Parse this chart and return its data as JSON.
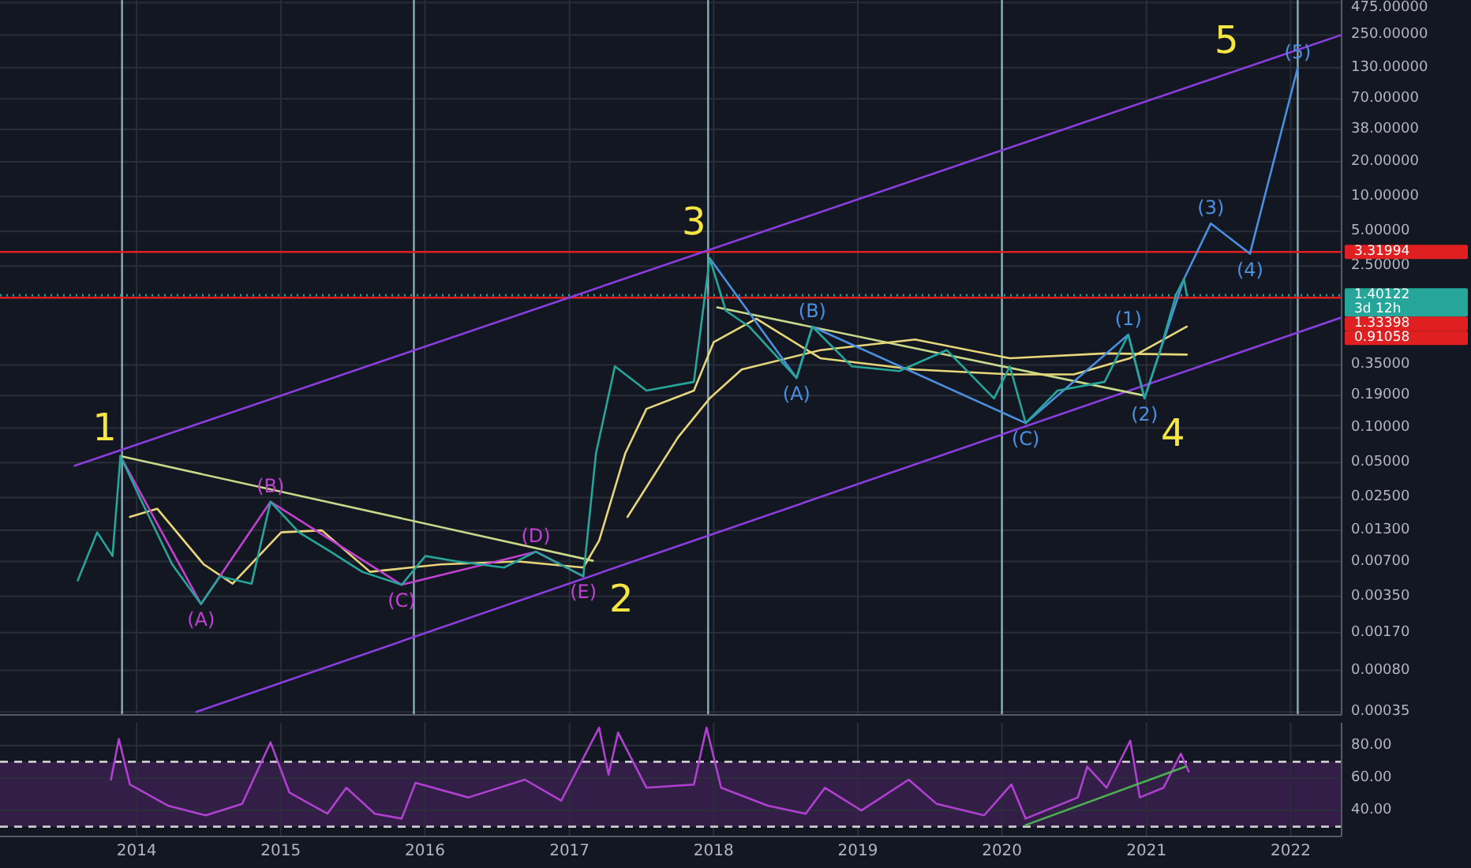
{
  "chart_data": [
    {
      "type": "line",
      "log": true,
      "grid": true,
      "tick_labels": "y",
      "xlim": [
        "2013-01-20",
        "2022-05-10"
      ],
      "xticks": [
        "2014",
        "2015",
        "2016",
        "2017",
        "2018",
        "2019",
        "2020",
        "2021",
        "2022"
      ],
      "ylim": [
        0.00033,
        500
      ],
      "yticks": [
        {
          "value": 0.00035,
          "label": "0.00035"
        },
        {
          "value": 0.0008,
          "label": "0.00080"
        },
        {
          "value": 0.0017,
          "label": "0.00170"
        },
        {
          "value": 0.0035,
          "label": "0.00350"
        },
        {
          "value": 0.007,
          "label": "0.00700"
        },
        {
          "value": 0.013,
          "label": "0.01300"
        },
        {
          "value": 0.025,
          "label": "0.02500"
        },
        {
          "value": 0.05,
          "label": "0.05000"
        },
        {
          "value": 0.1,
          "label": "0.10000"
        },
        {
          "value": 0.19,
          "label": "0.19000"
        },
        {
          "value": 0.35,
          "label": "0.35000"
        },
        {
          "value": 2.5,
          "label": "2.50000"
        },
        {
          "value": 5,
          "label": "5.00000"
        },
        {
          "value": 10,
          "label": "10.00000"
        },
        {
          "value": 20,
          "label": "20.00000"
        },
        {
          "value": 38,
          "label": "38.00000"
        },
        {
          "value": 70,
          "label": "70.00000"
        },
        {
          "value": 130,
          "label": "130.00000"
        },
        {
          "value": 250,
          "label": "250.00000"
        },
        {
          "value": 475,
          "label": "475.00000"
        }
      ],
      "series": [
        {
          "color": "#8a3ee0",
          "x": [
            "2013-07-28",
            "2022-05-10"
          ],
          "values": [
            0.047,
            250
          ]
        },
        {
          "color": "#8a3ee0",
          "x": [
            "2014-06-01",
            "2022-05-10"
          ],
          "values": [
            0.00035,
            0.9
          ]
        },
        {
          "color": "#c8d98a",
          "x": [
            "2013-11-21",
            "2017-03-01"
          ],
          "values": [
            0.057,
            0.0071
          ]
        },
        {
          "color": "#c8d98a",
          "x": [
            "2018-01-10",
            "2020-12-27"
          ],
          "values": [
            1.1,
            0.19
          ]
        },
        {
          "color": "#e8d77a",
          "x": [
            "2013-12-15",
            "2014-02-22",
            "2014-06-20",
            "2014-09-01",
            "2015-01-02",
            "2015-04-15",
            "2015-08-15",
            "2016-02-10",
            "2016-08-25",
            "2017-02-05",
            "2017-03-17",
            "2017-05-22",
            "2017-07-15",
            "2017-11-12",
            "2018-01-01",
            "2018-04-19",
            "2018-09-28",
            "2019-05-26",
            "2020-01-21",
            "2020-07-01",
            "2020-11-20",
            "2021-04-13"
          ],
          "values": [
            0.017,
            0.02,
            0.0066,
            0.0045,
            0.0125,
            0.013,
            0.0057,
            0.0066,
            0.007,
            0.0062,
            0.0106,
            0.06,
            0.146,
            0.21,
            0.55,
            0.88,
            0.4,
            0.32,
            0.29,
            0.29,
            0.4,
            0.75
          ]
        },
        {
          "color": "#e8d77a",
          "x": [
            "2017-05-28",
            "2017-10-03",
            "2017-12-22",
            "2018-03-13",
            "2018-09-28",
            "2019-05-26",
            "2020-01-21",
            "2020-09-17",
            "2021-04-13"
          ],
          "values": [
            0.017,
            0.083,
            0.18,
            0.32,
            0.47,
            0.58,
            0.4,
            0.44,
            0.43
          ]
        },
        {
          "color": "#c040d0",
          "x": [
            "2013-11-21",
            "2014-06-13",
            "2014-12-06",
            "2015-11-03",
            "2016-10-08",
            "2017-02-05"
          ],
          "values": [
            0.057,
            0.003,
            0.023,
            0.0044,
            0.0085,
            0.0052
          ]
        },
        {
          "color": "#4a8fe0",
          "x": [
            "2017-12-22",
            "2018-07-30",
            "2018-09-08",
            "2020-03-01"
          ],
          "values": [
            2.93,
            0.27,
            0.75,
            0.11
          ]
        },
        {
          "color": "#4a8fe0",
          "x": [
            "2020-03-01",
            "2020-11-16",
            "2020-12-27",
            "2021-04-06",
            "2021-06-13",
            "2021-09-20",
            "2022-01-19"
          ],
          "values": [
            0.11,
            0.64,
            0.18,
            1.94,
            5.85,
            3.2,
            130
          ]
        },
        {
          "color": "#26a69a",
          "x": [
            "2013-08-05",
            "2013-09-23",
            "2013-11-01",
            "2013-11-21",
            "2014-01-13",
            "2014-04-01",
            "2014-06-13",
            "2014-07-31",
            "2014-10-19",
            "2014-12-06",
            "2015-02-16",
            "2015-05-07",
            "2015-07-26",
            "2015-11-03",
            "2016-01-02",
            "2016-03-23",
            "2016-07-19",
            "2016-10-08",
            "2017-02-05",
            "2017-03-09",
            "2017-04-26",
            "2017-07-15",
            "2017-11-12",
            "2017-12-22",
            "2018-02-01",
            "2018-04-01",
            "2018-07-30",
            "2018-09-08",
            "2018-12-17",
            "2019-04-16",
            "2019-08-14",
            "2019-12-12",
            "2020-01-21",
            "2020-03-01",
            "2020-05-21",
            "2020-09-17",
            "2020-11-16",
            "2020-12-27",
            "2021-02-05",
            "2021-03-17",
            "2021-04-06",
            "2021-04-13"
          ],
          "values": [
            0.0048,
            0.0125,
            0.0078,
            0.057,
            0.0234,
            0.0066,
            0.003,
            0.0052,
            0.0045,
            0.023,
            0.0125,
            0.0085,
            0.0057,
            0.0044,
            0.0078,
            0.007,
            0.0062,
            0.0085,
            0.0052,
            0.06,
            0.34,
            0.21,
            0.25,
            2.93,
            1.03,
            0.75,
            0.27,
            0.75,
            0.34,
            0.31,
            0.47,
            0.18,
            0.34,
            0.11,
            0.21,
            0.25,
            0.64,
            0.18,
            0.47,
            1.42,
            1.94,
            1.4
          ]
        }
      ],
      "ref_lines": [
        {
          "axis": "x",
          "value": "2013-11-25",
          "color": "#a8d0e0"
        },
        {
          "axis": "x",
          "value": "2015-12-04",
          "color": "#a8d0e0"
        },
        {
          "axis": "x",
          "value": "2017-12-18",
          "color": "#a8d0e0"
        },
        {
          "axis": "x",
          "value": "2020-01-01",
          "color": "#a8d0e0"
        },
        {
          "axis": "x",
          "value": "2022-01-19",
          "color": "#a8d0e0"
        },
        {
          "axis": "y",
          "value": 3.31994,
          "label": "3.31994",
          "color": "#e02020",
          "line_style": "solid"
        },
        {
          "axis": "y",
          "value": 1.40122,
          "label": "1.40122",
          "color": "#26a69a",
          "line_style": "dotted"
        },
        {
          "axis": "y",
          "value": 1.33398,
          "label": "1.33398",
          "color": "#e02020",
          "line_style": "solid"
        }
      ],
      "annotations": [
        "3d 12h",
        "0.91058",
        {
          "text": "1",
          "x": "2013-11-21",
          "y": 0.057
        },
        {
          "text": "2",
          "x": "2017-03-01",
          "y": 0.0071
        },
        {
          "text": "3",
          "x": "2017-12-22",
          "y": 3.45
        },
        {
          "text": "4",
          "x": "2020-12-27",
          "y": 0.19
        },
        {
          "text": "5",
          "x": "2021-09-01",
          "y": 128
        },
        {
          "text": "(A)",
          "x": "2014-06-13",
          "y": 0.003
        },
        {
          "text": "(B)",
          "x": "2014-12-06",
          "y": 0.023
        },
        {
          "text": "(C)",
          "x": "2015-11-03",
          "y": 0.0044
        },
        {
          "text": "(D)",
          "x": "2016-10-08",
          "y": 0.0085
        },
        {
          "text": "(E)",
          "x": "2017-02-05",
          "y": 0.0052
        },
        {
          "text": "(A)",
          "x": "2018-07-30",
          "y": 0.27
        },
        {
          "text": "(B)",
          "x": "2018-09-08",
          "y": 0.75
        },
        {
          "text": "(C)",
          "x": "2020-03-01",
          "y": 0.11
        },
        {
          "text": "(1)",
          "x": "2020-11-16",
          "y": 0.64
        },
        {
          "text": "(2)",
          "x": "2020-12-27",
          "y": 0.18
        },
        {
          "text": "(3)",
          "x": "2021-06-13",
          "y": 5.85
        },
        {
          "text": "(4)",
          "x": "2021-09-20",
          "y": 3.2
        },
        {
          "text": "(5)",
          "x": "2022-01-19",
          "y": 130
        }
      ]
    },
    {
      "type": "line",
      "grid": true,
      "tick_labels": true,
      "xlim": [
        "2013-01-20",
        "2022-05-10"
      ],
      "xticks": [
        "2014",
        "2015",
        "2016",
        "2017",
        "2018",
        "2019",
        "2020",
        "2021",
        "2022"
      ],
      "ylim": [
        24,
        94
      ],
      "yticks": [
        {
          "value": 40,
          "label": "40.00"
        },
        {
          "value": 60,
          "label": "60.00"
        },
        {
          "value": 80,
          "label": "80.00"
        }
      ],
      "series": [
        {
          "color": "#b040d0",
          "x": [
            "2013-10-28",
            "2013-11-17",
            "2013-12-15",
            "2014-03-21",
            "2014-06-25",
            "2014-09-25",
            "2014-12-06",
            "2015-01-23",
            "2015-04-29",
            "2015-06-16",
            "2015-08-27",
            "2015-11-03",
            "2015-12-08",
            "2016-04-20",
            "2016-09-10",
            "2016-12-11",
            "2017-03-17",
            "2017-04-10",
            "2017-05-04",
            "2017-07-15",
            "2017-11-12",
            "2017-12-14",
            "2018-01-20",
            "2018-05-18",
            "2018-08-22",
            "2018-10-10",
            "2019-01-10",
            "2019-05-10",
            "2019-07-20",
            "2019-11-17",
            "2020-01-25",
            "2020-03-01",
            "2020-07-11",
            "2020-08-04",
            "2020-09-22",
            "2020-11-21",
            "2020-12-15",
            "2021-02-13",
            "2021-03-29",
            "2021-04-18"
          ],
          "values": [
            59,
            84,
            56,
            43,
            37,
            44,
            82,
            51,
            38,
            54,
            38,
            35,
            57,
            48,
            59,
            46,
            91,
            62,
            88,
            54,
            56,
            91,
            54,
            43,
            38,
            54,
            40,
            59,
            44,
            37,
            56,
            35,
            48,
            67,
            54,
            83,
            48,
            54,
            75,
            64
          ]
        },
        {
          "color": "#4caf50",
          "x": [
            "2020-03-01",
            "2021-04-10"
          ],
          "values": [
            31,
            67
          ]
        }
      ],
      "ref_lines": [
        {
          "axis": "y",
          "value": 70,
          "color": "#cccccc",
          "line_style": "dashed"
        },
        {
          "axis": "y",
          "value": 30,
          "color": "#cccccc",
          "line_style": "dashed"
        }
      ],
      "bands": [
        {
          "axis": "y",
          "from": 30,
          "to": 70,
          "color": "#7b2fa0"
        }
      ]
    }
  ]
}
